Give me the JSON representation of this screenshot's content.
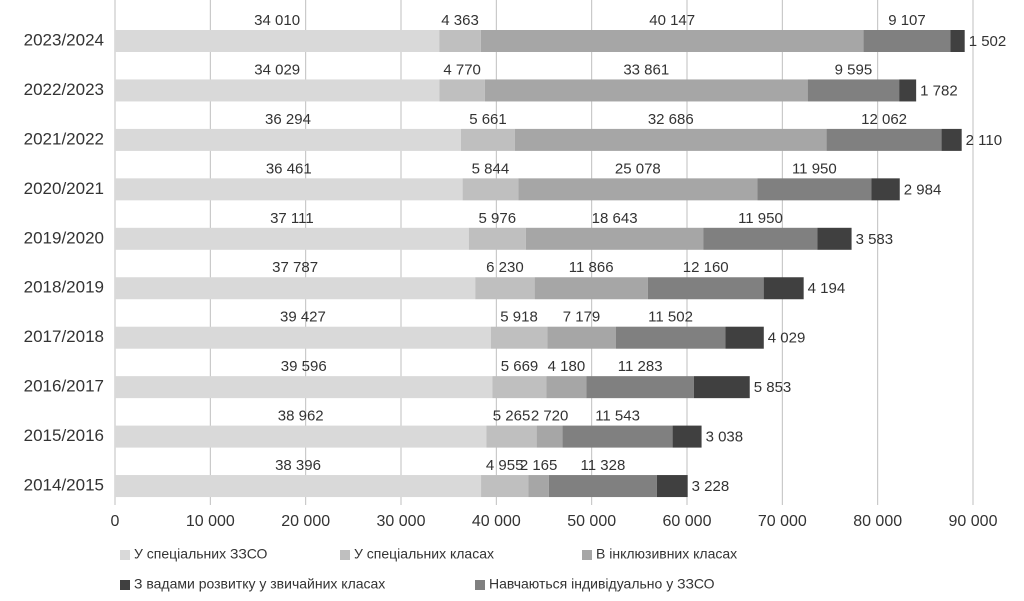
{
  "chart_data": {
    "type": "stacked_barh",
    "categories": [
      "2023/2024",
      "2022/2023",
      "2021/2022",
      "2020/2021",
      "2019/2020",
      "2018/2019",
      "2017/2018",
      "2016/2017",
      "2015/2016",
      "2014/2015"
    ],
    "series": [
      {
        "name": "У спеціальних ЗЗСО",
        "color": "#d9d9d9",
        "values": [
          34010,
          34029,
          36294,
          36461,
          37111,
          37787,
          39427,
          39596,
          38962,
          38396
        ],
        "value_labels": [
          "34 010",
          "34 029",
          "36 294",
          "36 461",
          "37 111",
          "37 787",
          "39 427",
          "39 596",
          "38 962",
          "38 396"
        ]
      },
      {
        "name": "У спеціальних класах",
        "color": "#bfbfbf",
        "values": [
          4363,
          4770,
          5661,
          5844,
          5976,
          6230,
          5918,
          5669,
          5265,
          4955
        ],
        "value_labels": [
          "4 363",
          "4 770",
          "5 661",
          "5 844",
          "5 976",
          "6 230",
          "5 918",
          "5 669",
          "5 265",
          "4 955"
        ]
      },
      {
        "name": "В інклюзивних класах",
        "color": "#a6a6a6",
        "values": [
          40147,
          33861,
          32686,
          25078,
          18643,
          11866,
          7179,
          4180,
          2720,
          2165
        ],
        "value_labels": [
          "40 147",
          "33 861",
          "32 686",
          "25 078",
          "18 643",
          "11 866",
          "7 179",
          "4 180",
          "2 720",
          "2 165"
        ]
      },
      {
        "name": "Навчаються індивідуально у ЗЗСО",
        "color": "#808080",
        "values": [
          9107,
          9595,
          12062,
          11950,
          11950,
          12160,
          11502,
          11283,
          11543,
          11328
        ],
        "value_labels": [
          "9 107",
          "9 595",
          "12 062",
          "11 950",
          "11 950",
          "12 160",
          "11 502",
          "11 283",
          "11 543",
          "11 328"
        ]
      },
      {
        "name": "З вадами розвитку у звичайних класах",
        "color": "#404040",
        "values": [
          1502,
          1782,
          2110,
          2984,
          3583,
          4194,
          4029,
          5853,
          3038,
          3228
        ],
        "value_labels": [
          "1 502",
          "1 782",
          "2 110",
          "2 984",
          "3 583",
          "4 194",
          "4 029",
          "5 853",
          "3 038",
          "3 228"
        ]
      }
    ],
    "xlim": [
      0,
      90000
    ],
    "xticks": [
      0,
      {
        "value": 10000,
        "label": "10 000"
      },
      {
        "value": 20000,
        "label": "20 000"
      },
      {
        "value": 30000,
        "label": "30 000"
      },
      {
        "value": 40000,
        "label": "40 000"
      },
      {
        "value": 50000,
        "label": "50 000"
      },
      {
        "value": 60000,
        "label": "60 000"
      },
      {
        "value": 70000,
        "label": "70 000"
      },
      {
        "value": 80000,
        "label": "80 000"
      },
      {
        "value": 90000,
        "label": "90 000"
      }
    ],
    "grid": true
  }
}
